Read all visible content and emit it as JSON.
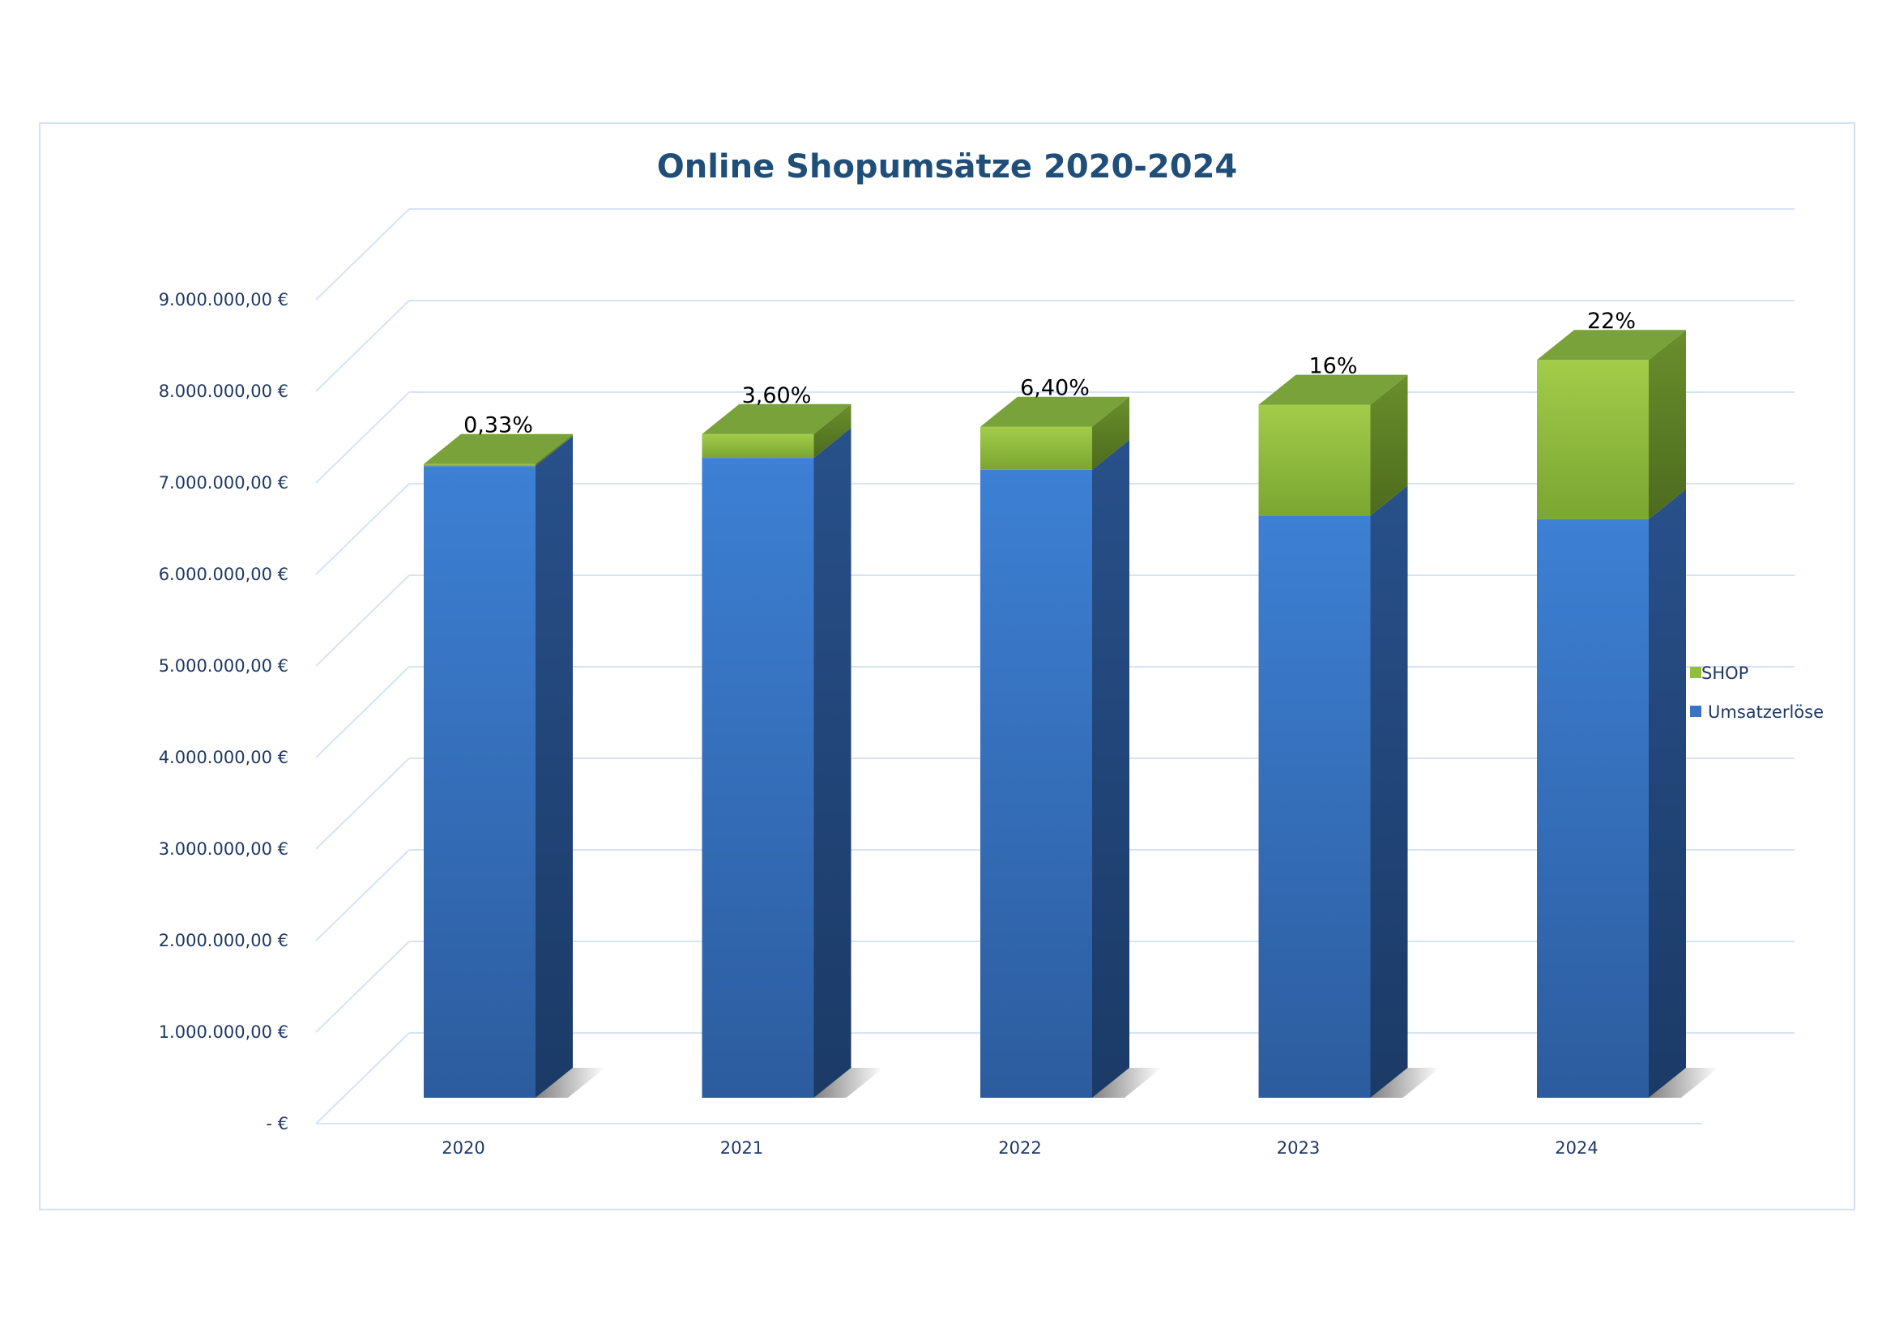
{
  "chart_data": {
    "type": "bar",
    "stacked": true,
    "style": "3d-column",
    "title": "Online Shopumsätze 2020-2024",
    "categories": [
      "2020",
      "2021",
      "2022",
      "2023",
      "2024"
    ],
    "series": [
      {
        "name": "Umsatzerlöse",
        "color": "#3a75c4",
        "values": [
          6900000,
          6990000,
          6860000,
          6360000,
          6320000
        ]
      },
      {
        "name": "SHOP",
        "color": "#8fbf3d",
        "values": [
          23000,
          260000,
          470000,
          1210000,
          1740000
        ]
      }
    ],
    "data_labels": [
      "0,33%",
      "3,60%",
      "6,40%",
      "16%",
      "22%"
    ],
    "y_ticks": [
      "-  €",
      "1.000.000,00 €",
      "2.000.000,00 €",
      "3.000.000,00 €",
      "4.000.000,00 €",
      "5.000.000,00 €",
      "6.000.000,00 €",
      "7.000.000,00 €",
      "8.000.000,00 €",
      "9.000.000,00 €"
    ],
    "ylim": [
      0,
      9000000
    ],
    "grid": true,
    "legend_position": "right",
    "legend": [
      {
        "label": "SHOP",
        "color": "#8fbf3d"
      },
      {
        "label": "Umsatzerlöse",
        "color": "#3a75c4"
      }
    ]
  }
}
